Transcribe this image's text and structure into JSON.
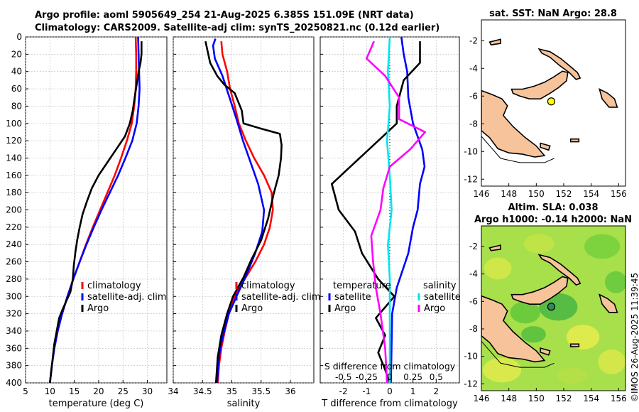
{
  "header": {
    "line1": "Argo profile: aoml 5905649_254 21-Aug-2025 6.385S 151.09E (NRT data)",
    "line2": "Climatology: CARS2009. Satellite-adj clim: synTS_20250821.nc (0.12d earlier)"
  },
  "colors": {
    "climatology": "#ff0000",
    "satellite": "#0000ff",
    "argo": "#000000",
    "argo_s_diff": "#ff00ff",
    "sat_s_diff": "#00e5ee",
    "land": "#f7c39a",
    "marker": "#ffff00"
  },
  "chart_data": [
    {
      "type": "line",
      "title": "",
      "xlabel": "temperature (deg C)",
      "ylabel": "",
      "xlim": [
        5,
        34
      ],
      "ylim": [
        0,
        400
      ],
      "xticks": [
        5,
        10,
        15,
        20,
        25,
        30
      ],
      "yticks": [
        0,
        20,
        40,
        60,
        80,
        100,
        120,
        140,
        160,
        180,
        200,
        220,
        240,
        260,
        280,
        300,
        320,
        340,
        360,
        380,
        400
      ],
      "legend": [
        "climatology",
        "satellite-adj. clim",
        "Argo"
      ],
      "legend_position": "lower-center",
      "series": [
        {
          "name": "climatology",
          "color": "#ff0000",
          "points": [
            [
              27.6,
              0
            ],
            [
              27.7,
              20
            ],
            [
              27.7,
              40
            ],
            [
              27.6,
              60
            ],
            [
              27.3,
              80
            ],
            [
              26.8,
              100
            ],
            [
              25.8,
              120
            ],
            [
              24.6,
              140
            ],
            [
              23.3,
              160
            ],
            [
              21.8,
              180
            ],
            [
              20.3,
              200
            ],
            [
              18.8,
              220
            ],
            [
              17.4,
              240
            ],
            [
              16.1,
              260
            ],
            [
              14.8,
              280
            ],
            [
              13.6,
              300
            ],
            [
              12.5,
              320
            ],
            [
              11.6,
              340
            ],
            [
              10.9,
              360
            ],
            [
              10.4,
              380
            ],
            [
              10.0,
              400
            ]
          ]
        },
        {
          "name": "satellite-adj. clim",
          "color": "#0000ff",
          "points": [
            [
              28.1,
              0
            ],
            [
              28.2,
              20
            ],
            [
              28.3,
              40
            ],
            [
              28.4,
              60
            ],
            [
              28.2,
              80
            ],
            [
              27.8,
              100
            ],
            [
              26.9,
              120
            ],
            [
              25.5,
              140
            ],
            [
              24.0,
              160
            ],
            [
              22.3,
              180
            ],
            [
              20.6,
              200
            ],
            [
              19.0,
              220
            ],
            [
              17.5,
              240
            ],
            [
              16.1,
              260
            ],
            [
              14.8,
              280
            ],
            [
              13.6,
              300
            ],
            [
              12.5,
              320
            ],
            [
              11.6,
              340
            ],
            [
              10.9,
              360
            ],
            [
              10.4,
              380
            ],
            [
              10.0,
              400
            ]
          ]
        },
        {
          "name": "Argo",
          "color": "#000000",
          "points": [
            [
              28.8,
              5
            ],
            [
              28.8,
              20
            ],
            [
              28.6,
              30
            ],
            [
              28.2,
              40
            ],
            [
              27.8,
              55
            ],
            [
              27.4,
              70
            ],
            [
              27.0,
              85
            ],
            [
              26.4,
              100
            ],
            [
              25.4,
              115
            ],
            [
              23.6,
              130
            ],
            [
              21.8,
              145
            ],
            [
              20.0,
              160
            ],
            [
              18.6,
              175
            ],
            [
              17.6,
              190
            ],
            [
              16.7,
              205
            ],
            [
              16.1,
              220
            ],
            [
              15.6,
              235
            ],
            [
              15.2,
              250
            ],
            [
              14.9,
              265
            ],
            [
              14.7,
              280
            ],
            [
              14.2,
              295
            ],
            [
              13.4,
              305
            ],
            [
              12.6,
              315
            ],
            [
              11.9,
              325
            ],
            [
              11.4,
              340
            ],
            [
              10.9,
              355
            ],
            [
              10.6,
              370
            ],
            [
              10.3,
              385
            ],
            [
              10.0,
              400
            ]
          ]
        }
      ]
    },
    {
      "type": "line",
      "title": "",
      "xlabel": "salinity",
      "ylabel": "",
      "xlim": [
        34,
        36.4
      ],
      "ylim": [
        0,
        400
      ],
      "xticks": [
        34,
        34.5,
        35,
        35.5,
        36
      ],
      "legend": [
        "climatology",
        "satellite-adj. clim",
        "Argo"
      ],
      "legend_position": "lower-right",
      "series": [
        {
          "name": "climatology",
          "color": "#ff0000",
          "points": [
            [
              34.82,
              5
            ],
            [
              34.84,
              20
            ],
            [
              34.92,
              40
            ],
            [
              34.97,
              60
            ],
            [
              35.05,
              80
            ],
            [
              35.12,
              100
            ],
            [
              35.24,
              120
            ],
            [
              35.38,
              140
            ],
            [
              35.55,
              160
            ],
            [
              35.68,
              180
            ],
            [
              35.7,
              200
            ],
            [
              35.65,
              220
            ],
            [
              35.55,
              240
            ],
            [
              35.4,
              260
            ],
            [
              35.22,
              280
            ],
            [
              35.05,
              300
            ],
            [
              34.95,
              320
            ],
            [
              34.88,
              340
            ],
            [
              34.82,
              360
            ],
            [
              34.78,
              380
            ],
            [
              34.76,
              400
            ]
          ]
        },
        {
          "name": "satellite-adj. clim",
          "color": "#0000ff",
          "points": [
            [
              34.72,
              2
            ],
            [
              34.68,
              10
            ],
            [
              34.71,
              25
            ],
            [
              34.84,
              45
            ],
            [
              34.96,
              70
            ],
            [
              35.08,
              95
            ],
            [
              35.19,
              120
            ],
            [
              35.32,
              145
            ],
            [
              35.45,
              170
            ],
            [
              35.55,
              200
            ],
            [
              35.52,
              225
            ],
            [
              35.4,
              250
            ],
            [
              35.25,
              275
            ],
            [
              35.08,
              300
            ],
            [
              34.95,
              320
            ],
            [
              34.87,
              340
            ],
            [
              34.8,
              360
            ],
            [
              34.77,
              380
            ],
            [
              34.75,
              400
            ]
          ]
        },
        {
          "name": "Argo",
          "color": "#000000",
          "points": [
            [
              34.55,
              5
            ],
            [
              34.63,
              30
            ],
            [
              34.75,
              45
            ],
            [
              34.87,
              55
            ],
            [
              35.05,
              65
            ],
            [
              35.17,
              85
            ],
            [
              35.2,
              100
            ],
            [
              35.5,
              106
            ],
            [
              35.82,
              112
            ],
            [
              35.85,
              125
            ],
            [
              35.84,
              140
            ],
            [
              35.8,
              160
            ],
            [
              35.72,
              180
            ],
            [
              35.62,
              210
            ],
            [
              35.5,
              235
            ],
            [
              35.33,
              258
            ],
            [
              35.2,
              278
            ],
            [
              35.02,
              300
            ],
            [
              34.92,
              320
            ],
            [
              34.82,
              345
            ],
            [
              34.76,
              370
            ],
            [
              34.73,
              400
            ]
          ]
        }
      ]
    },
    {
      "type": "line",
      "title": "",
      "xlabel": "T difference from climatology",
      "x2label": "S difference from climatology",
      "xlim": [
        -3,
        3
      ],
      "x2lim": [
        -0.75,
        0.75
      ],
      "ylim": [
        0,
        400
      ],
      "xticks": [
        -2,
        -1,
        0,
        1,
        2
      ],
      "x2ticks": [
        -0.5,
        -0.25,
        0,
        0.25,
        0.5
      ],
      "legend_temperature": {
        "title": "temperature",
        "entries": [
          "satellite",
          "Argo"
        ]
      },
      "legend_salinity": {
        "title": "salinity",
        "entries": [
          "satellite",
          "Argo"
        ]
      },
      "series": [
        {
          "name": "temperature satellite",
          "color": "#0000ff",
          "units": "T",
          "points": [
            [
              0.5,
              0
            ],
            [
              0.6,
              20
            ],
            [
              0.75,
              40
            ],
            [
              0.8,
              70
            ],
            [
              1.0,
              100
            ],
            [
              1.4,
              130
            ],
            [
              1.5,
              150
            ],
            [
              1.3,
              170
            ],
            [
              1.2,
              200
            ],
            [
              1.0,
              220
            ],
            [
              0.8,
              250
            ],
            [
              0.3,
              290
            ],
            [
              0.1,
              320
            ],
            [
              0.05,
              400
            ]
          ]
        },
        {
          "name": "temperature Argo",
          "color": "#000000",
          "units": "T",
          "points": [
            [
              1.3,
              5
            ],
            [
              1.3,
              30
            ],
            [
              0.6,
              50
            ],
            [
              0.3,
              80
            ],
            [
              0.3,
              100
            ],
            [
              -0.9,
              130
            ],
            [
              -1.7,
              150
            ],
            [
              -2.5,
              170
            ],
            [
              -2.2,
              200
            ],
            [
              -1.5,
              225
            ],
            [
              -1.2,
              250
            ],
            [
              -0.5,
              280
            ],
            [
              0.2,
              300
            ],
            [
              -0.6,
              325
            ],
            [
              -0.2,
              345
            ],
            [
              -0.5,
              365
            ],
            [
              -0.2,
              385
            ],
            [
              0,
              400
            ]
          ]
        },
        {
          "name": "salinity satellite",
          "color": "#00e5ee",
          "units": "S",
          "points": [
            [
              0.0,
              0
            ],
            [
              -0.02,
              40
            ],
            [
              0.0,
              80
            ],
            [
              -0.03,
              120
            ],
            [
              0.0,
              160
            ],
            [
              0.02,
              200
            ],
            [
              -0.02,
              240
            ],
            [
              0.0,
              280
            ],
            [
              0.0,
              320
            ],
            [
              0.0,
              400
            ]
          ]
        },
        {
          "name": "salinity Argo",
          "color": "#ff00ff",
          "units": "S",
          "points": [
            [
              -0.17,
              5
            ],
            [
              -0.25,
              25
            ],
            [
              -0.05,
              45
            ],
            [
              0.1,
              70
            ],
            [
              0.1,
              95
            ],
            [
              0.38,
              110
            ],
            [
              0.22,
              130
            ],
            [
              0.0,
              150
            ],
            [
              -0.07,
              175
            ],
            [
              -0.1,
              200
            ],
            [
              -0.2,
              230
            ],
            [
              -0.18,
              260
            ],
            [
              -0.15,
              290
            ],
            [
              -0.1,
              320
            ],
            [
              -0.05,
              360
            ],
            [
              -0.03,
              400
            ]
          ]
        }
      ]
    },
    {
      "type": "map",
      "title": "sat. SST: NaN Argo: 28.8",
      "xlim": [
        146,
        156.5
      ],
      "ylim": [
        -12.5,
        -0.5
      ],
      "xticks": [
        146,
        148,
        150,
        152,
        154,
        156
      ],
      "yticks": [
        -2,
        -4,
        -6,
        -8,
        -10,
        -12
      ],
      "argo_position": {
        "lon": 151.09,
        "lat": -6.385
      }
    },
    {
      "type": "map",
      "title_line1": "Altim. SLA: 0.038",
      "title_line2": "Argo h1000: -0.14 h2000: NaN",
      "xlim": [
        146,
        156.5
      ],
      "ylim": [
        -12.5,
        -0.5
      ],
      "xticks": [
        146,
        148,
        150,
        152,
        154,
        156
      ],
      "yticks": [
        -2,
        -4,
        -6,
        -8,
        -10,
        -12
      ],
      "argo_position": {
        "lon": 151.09,
        "lat": -6.385
      }
    }
  ],
  "footer": {
    "stamp": "©IMOS 26-Aug-2025 11:39:45"
  }
}
